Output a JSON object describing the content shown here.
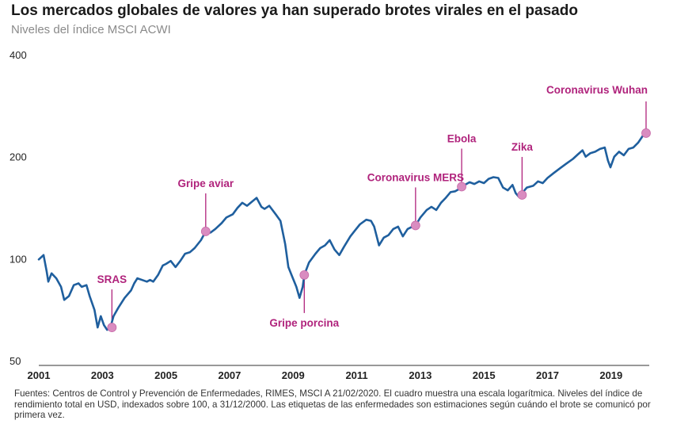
{
  "title": "Los mercados globales de valores ya han superado brotes virales en el pasado",
  "subtitle": "Niveles del índice MSCI ACWI",
  "source": "Fuentes: Centros de Control y Prevención de Enfermedades, RIMES, MSCI A 21/02/2020. El cuadro muestra una escala logarítmica. Niveles del índice de rendimiento total en USD, indexados sobre 100, a 31/12/2000. Las etiquetas de las enfermedades son estimaciones según cuándo el brote se comunicó por primera vez.",
  "colors": {
    "line": "#1f5f9e",
    "accent": "#b0237c",
    "marker": "#d98cc0"
  },
  "chart_data": {
    "type": "line",
    "scale": "log",
    "title": "Los mercados globales de valores ya han superado brotes virales en el pasado",
    "ylabel": "Niveles del índice MSCI ACWI",
    "xlim": [
      2001,
      2020.2
    ],
    "ylim": [
      50,
      400
    ],
    "x_ticks": [
      "2001",
      "2003",
      "2005",
      "2007",
      "2009",
      "2011",
      "2013",
      "2015",
      "2017",
      "2019"
    ],
    "y_ticks": [
      "50",
      "100",
      "200",
      "400"
    ],
    "series": [
      {
        "name": "MSCI ACWI",
        "points": [
          [
            2001.0,
            100
          ],
          [
            2001.15,
            103
          ],
          [
            2001.25,
            92
          ],
          [
            2001.3,
            86
          ],
          [
            2001.4,
            91
          ],
          [
            2001.55,
            88
          ],
          [
            2001.7,
            83
          ],
          [
            2001.8,
            76
          ],
          [
            2001.95,
            78
          ],
          [
            2002.1,
            84
          ],
          [
            2002.25,
            85
          ],
          [
            2002.35,
            83
          ],
          [
            2002.5,
            84
          ],
          [
            2002.6,
            78
          ],
          [
            2002.75,
            71
          ],
          [
            2002.85,
            63
          ],
          [
            2002.95,
            68
          ],
          [
            2003.05,
            64
          ],
          [
            2003.15,
            62
          ],
          [
            2003.25,
            63
          ],
          [
            2003.35,
            68
          ],
          [
            2003.5,
            72
          ],
          [
            2003.7,
            77
          ],
          [
            2003.9,
            81
          ],
          [
            2004.0,
            85
          ],
          [
            2004.1,
            88
          ],
          [
            2004.25,
            87
          ],
          [
            2004.4,
            86
          ],
          [
            2004.5,
            87
          ],
          [
            2004.6,
            86
          ],
          [
            2004.75,
            90
          ],
          [
            2004.9,
            96
          ],
          [
            2005.0,
            97
          ],
          [
            2005.15,
            99
          ],
          [
            2005.3,
            95
          ],
          [
            2005.45,
            99
          ],
          [
            2005.6,
            104
          ],
          [
            2005.75,
            105
          ],
          [
            2005.9,
            108
          ],
          [
            2006.1,
            114
          ],
          [
            2006.25,
            121
          ],
          [
            2006.4,
            120
          ],
          [
            2006.55,
            123
          ],
          [
            2006.75,
            128
          ],
          [
            2006.9,
            133
          ],
          [
            2007.1,
            136
          ],
          [
            2007.25,
            142
          ],
          [
            2007.4,
            147
          ],
          [
            2007.55,
            144
          ],
          [
            2007.7,
            148
          ],
          [
            2007.85,
            152
          ],
          [
            2008.0,
            143
          ],
          [
            2008.1,
            141
          ],
          [
            2008.25,
            144
          ],
          [
            2008.45,
            136
          ],
          [
            2008.6,
            130
          ],
          [
            2008.75,
            111
          ],
          [
            2008.85,
            95
          ],
          [
            2008.95,
            90
          ],
          [
            2009.1,
            83
          ],
          [
            2009.2,
            77
          ],
          [
            2009.3,
            83
          ],
          [
            2009.35,
            90
          ],
          [
            2009.5,
            98
          ],
          [
            2009.7,
            104
          ],
          [
            2009.85,
            108
          ],
          [
            2010.0,
            110
          ],
          [
            2010.15,
            114
          ],
          [
            2010.3,
            107
          ],
          [
            2010.45,
            103
          ],
          [
            2010.6,
            109
          ],
          [
            2010.8,
            117
          ],
          [
            2010.95,
            122
          ],
          [
            2011.1,
            127
          ],
          [
            2011.3,
            131
          ],
          [
            2011.45,
            130
          ],
          [
            2011.55,
            125
          ],
          [
            2011.7,
            110
          ],
          [
            2011.85,
            116
          ],
          [
            2012.0,
            118
          ],
          [
            2012.15,
            123
          ],
          [
            2012.3,
            125
          ],
          [
            2012.45,
            117
          ],
          [
            2012.6,
            123
          ],
          [
            2012.75,
            125
          ],
          [
            2012.85,
            126
          ],
          [
            2013.0,
            133
          ],
          [
            2013.2,
            140
          ],
          [
            2013.35,
            143
          ],
          [
            2013.5,
            140
          ],
          [
            2013.65,
            147
          ],
          [
            2013.8,
            152
          ],
          [
            2013.95,
            158
          ],
          [
            2014.1,
            159
          ],
          [
            2014.25,
            162
          ],
          [
            2014.4,
            166
          ],
          [
            2014.55,
            169
          ],
          [
            2014.7,
            167
          ],
          [
            2014.85,
            170
          ],
          [
            2015.0,
            168
          ],
          [
            2015.15,
            173
          ],
          [
            2015.3,
            175
          ],
          [
            2015.45,
            174
          ],
          [
            2015.6,
            163
          ],
          [
            2015.75,
            160
          ],
          [
            2015.9,
            166
          ],
          [
            2016.0,
            157
          ],
          [
            2016.1,
            153
          ],
          [
            2016.2,
            157
          ],
          [
            2016.35,
            163
          ],
          [
            2016.55,
            165
          ],
          [
            2016.7,
            170
          ],
          [
            2016.85,
            168
          ],
          [
            2017.0,
            174
          ],
          [
            2017.2,
            180
          ],
          [
            2017.4,
            186
          ],
          [
            2017.6,
            192
          ],
          [
            2017.8,
            198
          ],
          [
            2017.95,
            204
          ],
          [
            2018.1,
            210
          ],
          [
            2018.2,
            201
          ],
          [
            2018.35,
            206
          ],
          [
            2018.5,
            208
          ],
          [
            2018.65,
            212
          ],
          [
            2018.8,
            214
          ],
          [
            2018.9,
            196
          ],
          [
            2018.98,
            187
          ],
          [
            2019.1,
            201
          ],
          [
            2019.25,
            208
          ],
          [
            2019.4,
            203
          ],
          [
            2019.55,
            212
          ],
          [
            2019.7,
            214
          ],
          [
            2019.85,
            221
          ],
          [
            2020.0,
            232
          ],
          [
            2020.1,
            236
          ],
          [
            2020.14,
            240
          ]
        ]
      }
    ],
    "annotations": [
      {
        "label": "SRAS",
        "x": 2003.3,
        "y": 63,
        "label_side": "above"
      },
      {
        "label": "Gripe aviar",
        "x": 2006.25,
        "y": 121,
        "label_side": "above"
      },
      {
        "label": "Gripe porcina",
        "x": 2009.35,
        "y": 90,
        "label_side": "below"
      },
      {
        "label": "Coronavirus MERS",
        "x": 2012.85,
        "y": 126,
        "label_side": "above"
      },
      {
        "label": "Ebola",
        "x": 2014.3,
        "y": 164,
        "label_side": "above"
      },
      {
        "label": "Zika",
        "x": 2016.2,
        "y": 155,
        "label_side": "above"
      },
      {
        "label": "Coronavirus Wuhan",
        "x": 2020.1,
        "y": 236,
        "label_side": "above"
      }
    ]
  }
}
